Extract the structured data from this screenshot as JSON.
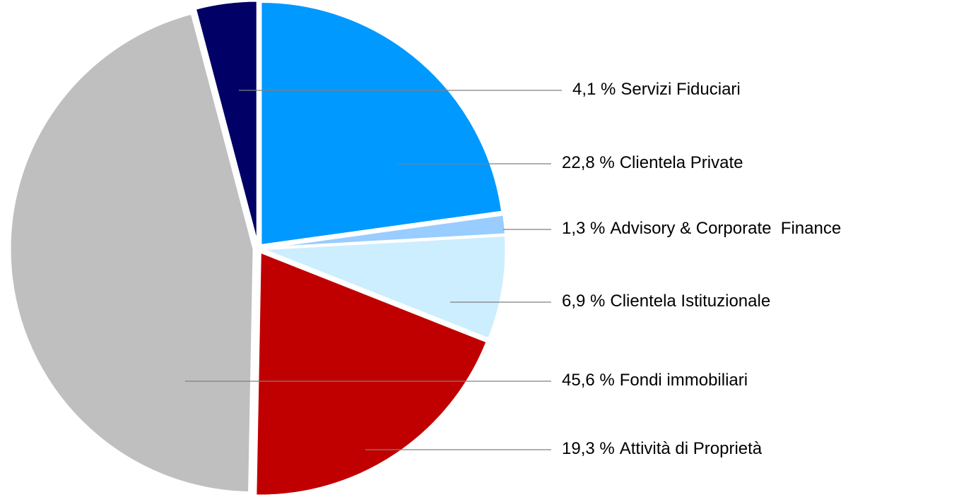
{
  "chart_data": {
    "type": "pie",
    "categories": [
      "Clientela Private",
      "Advisory & Corporate  Finance",
      "Clientela Istituzionale",
      "Attività di Proprietà",
      "Fondi immobiliari",
      "Servizi Fiduciari"
    ],
    "values": [
      22.8,
      1.3,
      6.9,
      19.3,
      45.6,
      4.1
    ],
    "value_labels": [
      "22,8 %",
      "1,3 %",
      "6,9 %",
      "19,3 %",
      "45,6 %",
      "4,1 %"
    ],
    "colors": [
      "#0099ff",
      "#99ccff",
      "#cceeff",
      "#c00000",
      "#bfbfbf",
      "#000066"
    ]
  }
}
